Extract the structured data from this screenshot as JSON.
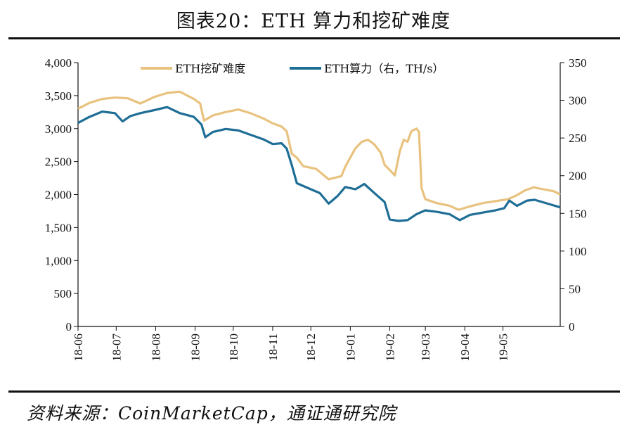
{
  "title": "图表20：ETH 算力和挖矿难度",
  "source": "资料来源：CoinMarketCap，通证通研究院",
  "chart_data": {
    "type": "line",
    "legend_position": "top-center",
    "grid": false,
    "x_ticks": [
      "18-06",
      "18-07",
      "18-08",
      "18-09",
      "18-10",
      "18-11",
      "18-12",
      "19-01",
      "19-02",
      "19-03",
      "19-04",
      "19-05"
    ],
    "left_axis": {
      "ylim": [
        0,
        4000
      ],
      "ticks": [
        "0",
        "500",
        "1,000",
        "1,500",
        "2,000",
        "2,500",
        "3,000",
        "3,500",
        "4,000"
      ]
    },
    "right_axis": {
      "ylim": [
        0,
        350
      ],
      "ticks": [
        "0",
        "50",
        "100",
        "150",
        "200",
        "250",
        "300",
        "350"
      ]
    },
    "series": [
      {
        "name": "ETH挖矿难度",
        "axis": "left",
        "color": "#E8C27E",
        "points": [
          [
            "18-06-01",
            3300
          ],
          [
            "18-06-10",
            3390
          ],
          [
            "18-06-20",
            3450
          ],
          [
            "18-06-30",
            3470
          ],
          [
            "18-07-10",
            3460
          ],
          [
            "18-07-20",
            3380
          ],
          [
            "18-07-31",
            3480
          ],
          [
            "18-08-10",
            3540
          ],
          [
            "18-08-20",
            3560
          ],
          [
            "18-08-31",
            3450
          ],
          [
            "18-09-05",
            3380
          ],
          [
            "18-09-08",
            3120
          ],
          [
            "18-09-15",
            3200
          ],
          [
            "18-09-25",
            3250
          ],
          [
            "18-10-05",
            3290
          ],
          [
            "18-10-15",
            3230
          ],
          [
            "18-10-25",
            3150
          ],
          [
            "18-11-01",
            3080
          ],
          [
            "18-11-08",
            3030
          ],
          [
            "18-11-12",
            2960
          ],
          [
            "18-11-16",
            2620
          ],
          [
            "18-11-20",
            2560
          ],
          [
            "18-11-25",
            2430
          ],
          [
            "18-12-05",
            2390
          ],
          [
            "18-12-15",
            2230
          ],
          [
            "18-12-25",
            2280
          ],
          [
            "18-12-28",
            2420
          ],
          [
            "19-01-01",
            2560
          ],
          [
            "19-01-05",
            2700
          ],
          [
            "19-01-10",
            2800
          ],
          [
            "19-01-15",
            2830
          ],
          [
            "19-01-20",
            2760
          ],
          [
            "19-01-25",
            2630
          ],
          [
            "19-01-28",
            2450
          ],
          [
            "19-02-01",
            2370
          ],
          [
            "19-02-05",
            2290
          ],
          [
            "19-02-09",
            2660
          ],
          [
            "19-02-12",
            2830
          ],
          [
            "19-02-15",
            2800
          ],
          [
            "19-02-18",
            2960
          ],
          [
            "19-02-22",
            3000
          ],
          [
            "19-02-24",
            2950
          ],
          [
            "19-02-26",
            2100
          ],
          [
            "19-03-01",
            1930
          ],
          [
            "19-03-10",
            1870
          ],
          [
            "19-03-20",
            1830
          ],
          [
            "19-03-27",
            1770
          ],
          [
            "19-04-05",
            1820
          ],
          [
            "19-04-15",
            1870
          ],
          [
            "19-04-25",
            1900
          ],
          [
            "19-05-05",
            1930
          ],
          [
            "19-05-12",
            1990
          ],
          [
            "19-05-18",
            2060
          ],
          [
            "19-05-25",
            2110
          ],
          [
            "19-05-30",
            2090
          ],
          [
            "19-06-10",
            2050
          ],
          [
            "19-06-15",
            2000
          ]
        ]
      },
      {
        "name": "ETH算力（右，TH/s）",
        "axis": "right",
        "color": "#1F6E96",
        "points": [
          [
            "18-06-01",
            270
          ],
          [
            "18-06-10",
            278
          ],
          [
            "18-06-20",
            285
          ],
          [
            "18-06-30",
            283
          ],
          [
            "18-07-06",
            272
          ],
          [
            "18-07-12",
            279
          ],
          [
            "18-07-20",
            283
          ],
          [
            "18-07-31",
            287
          ],
          [
            "18-08-10",
            291
          ],
          [
            "18-08-20",
            283
          ],
          [
            "18-08-31",
            278
          ],
          [
            "18-09-06",
            268
          ],
          [
            "18-09-09",
            251
          ],
          [
            "18-09-15",
            258
          ],
          [
            "18-09-25",
            262
          ],
          [
            "18-10-05",
            260
          ],
          [
            "18-10-15",
            254
          ],
          [
            "18-10-25",
            248
          ],
          [
            "18-11-01",
            242
          ],
          [
            "18-11-08",
            243
          ],
          [
            "18-11-12",
            236
          ],
          [
            "18-11-16",
            214
          ],
          [
            "18-11-20",
            190
          ],
          [
            "18-12-01",
            182
          ],
          [
            "18-12-08",
            177
          ],
          [
            "18-12-15",
            163
          ],
          [
            "18-12-22",
            173
          ],
          [
            "18-12-28",
            185
          ],
          [
            "19-01-05",
            182
          ],
          [
            "19-01-12",
            189
          ],
          [
            "19-01-20",
            177
          ],
          [
            "19-01-28",
            165
          ],
          [
            "19-02-01",
            142
          ],
          [
            "19-02-08",
            140
          ],
          [
            "19-02-15",
            141
          ],
          [
            "19-02-22",
            149
          ],
          [
            "19-03-01",
            154
          ],
          [
            "19-03-10",
            152
          ],
          [
            "19-03-20",
            149
          ],
          [
            "19-03-28",
            141
          ],
          [
            "19-04-05",
            148
          ],
          [
            "19-04-15",
            151
          ],
          [
            "19-04-25",
            154
          ],
          [
            "19-05-02",
            157
          ],
          [
            "19-05-06",
            167
          ],
          [
            "19-05-12",
            160
          ],
          [
            "19-05-20",
            167
          ],
          [
            "19-05-26",
            168
          ],
          [
            "19-06-05",
            163
          ],
          [
            "19-06-15",
            158
          ]
        ]
      }
    ]
  }
}
